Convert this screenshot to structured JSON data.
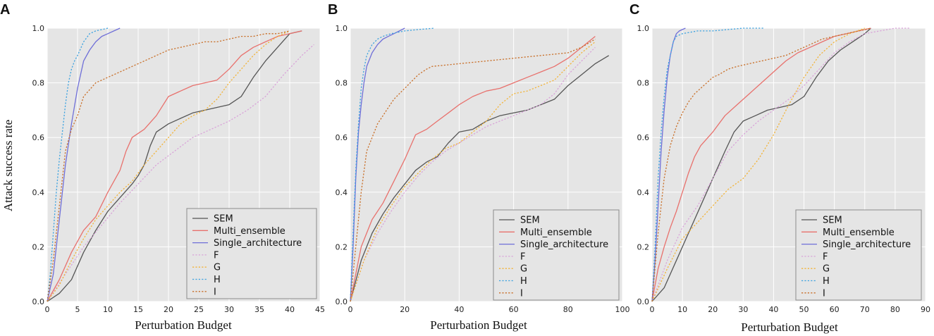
{
  "figure": {
    "ylabel": "Attack success rate"
  },
  "series_styles": [
    {
      "name": "SEM",
      "color": "#555555",
      "dash": "solid"
    },
    {
      "name": "Multi_ensemble",
      "color": "#e8716d",
      "dash": "solid"
    },
    {
      "name": "Single_architecture",
      "color": "#6f6fd8",
      "dash": "solid"
    },
    {
      "name": "F",
      "color": "#d9a3d9",
      "dash": "dotted"
    },
    {
      "name": "G",
      "color": "#f2b43a",
      "dash": "dotted"
    },
    {
      "name": "H",
      "color": "#3ea3e0",
      "dash": "dotted"
    },
    {
      "name": "I",
      "color": "#c9702a",
      "dash": "dotted"
    }
  ],
  "chart_data": [
    {
      "type": "line",
      "panel": "A",
      "xlabel": "Perturbation Budget",
      "ylabel": "Attack success rate",
      "xlim": [
        0,
        45
      ],
      "ylim": [
        0,
        1.0
      ],
      "xticks": [
        0,
        5,
        10,
        15,
        20,
        25,
        30,
        35,
        40,
        45
      ],
      "yticks": [
        0.0,
        0.2,
        0.4,
        0.6,
        0.8,
        1.0
      ],
      "legend_position": "bottom-right",
      "series": [
        {
          "name": "SEM",
          "x": [
            0,
            2,
            4,
            6,
            8,
            10,
            12,
            14,
            15,
            16,
            17,
            18,
            20,
            22,
            24,
            26,
            28,
            30,
            32,
            34,
            36,
            38,
            40,
            42
          ],
          "y": [
            0,
            0.03,
            0.08,
            0.18,
            0.26,
            0.33,
            0.38,
            0.43,
            0.46,
            0.5,
            0.57,
            0.62,
            0.65,
            0.67,
            0.69,
            0.7,
            0.71,
            0.72,
            0.75,
            0.82,
            0.88,
            0.93,
            0.98,
            0.99
          ]
        },
        {
          "name": "Multi_ensemble",
          "x": [
            0,
            2,
            4,
            6,
            8,
            10,
            12,
            13,
            14,
            16,
            18,
            20,
            22,
            24,
            26,
            28,
            30,
            32,
            34,
            36,
            38,
            40,
            42
          ],
          "y": [
            0,
            0.08,
            0.18,
            0.26,
            0.31,
            0.4,
            0.48,
            0.55,
            0.6,
            0.63,
            0.68,
            0.75,
            0.77,
            0.79,
            0.8,
            0.81,
            0.85,
            0.9,
            0.93,
            0.95,
            0.97,
            0.98,
            0.99
          ]
        },
        {
          "name": "Single_architecture",
          "x": [
            0,
            1,
            2,
            3,
            4,
            5,
            6,
            7,
            8,
            9,
            10,
            11,
            12
          ],
          "y": [
            0,
            0.1,
            0.3,
            0.5,
            0.65,
            0.78,
            0.88,
            0.92,
            0.95,
            0.97,
            0.98,
            0.99,
            1.0
          ]
        },
        {
          "name": "F",
          "x": [
            0,
            3,
            6,
            9,
            12,
            15,
            18,
            21,
            24,
            27,
            30,
            33,
            36,
            39,
            42,
            44
          ],
          "y": [
            0,
            0.1,
            0.2,
            0.28,
            0.36,
            0.43,
            0.5,
            0.55,
            0.6,
            0.63,
            0.66,
            0.7,
            0.75,
            0.83,
            0.9,
            0.94
          ]
        },
        {
          "name": "G",
          "x": [
            0,
            2,
            4,
            6,
            8,
            10,
            12,
            14,
            16,
            18,
            20,
            22,
            24,
            26,
            28,
            30,
            32,
            34,
            36,
            38,
            40
          ],
          "y": [
            0,
            0.06,
            0.15,
            0.23,
            0.3,
            0.35,
            0.4,
            0.44,
            0.5,
            0.55,
            0.6,
            0.65,
            0.68,
            0.7,
            0.74,
            0.8,
            0.85,
            0.9,
            0.94,
            0.97,
            0.99
          ]
        },
        {
          "name": "H",
          "x": [
            0,
            0.5,
            1,
            1.5,
            2,
            2.5,
            3,
            3.5,
            4,
            4.5,
            5,
            6,
            7,
            8,
            10
          ],
          "y": [
            0,
            0.1,
            0.25,
            0.4,
            0.52,
            0.62,
            0.72,
            0.8,
            0.85,
            0.88,
            0.9,
            0.95,
            0.98,
            0.99,
            1.0
          ]
        },
        {
          "name": "I",
          "x": [
            0,
            1,
            2,
            3,
            4,
            5,
            6,
            8,
            10,
            12,
            14,
            16,
            18,
            20,
            22,
            24,
            26,
            28,
            30,
            32,
            34,
            36,
            38,
            40
          ],
          "y": [
            0,
            0.15,
            0.35,
            0.55,
            0.63,
            0.68,
            0.75,
            0.8,
            0.82,
            0.84,
            0.86,
            0.88,
            0.9,
            0.92,
            0.93,
            0.94,
            0.95,
            0.95,
            0.96,
            0.97,
            0.97,
            0.98,
            0.98,
            0.99
          ]
        }
      ]
    },
    {
      "type": "line",
      "panel": "B",
      "xlabel": "Perturbation Budget",
      "ylabel": "",
      "xlim": [
        0,
        100
      ],
      "ylim": [
        0,
        1.0
      ],
      "xticks": [
        0,
        20,
        40,
        60,
        80,
        100
      ],
      "yticks": [
        0.0,
        0.2,
        0.4,
        0.6,
        0.8,
        1.0
      ],
      "legend_position": "bottom-right",
      "series": [
        {
          "name": "SEM",
          "x": [
            0,
            4,
            8,
            12,
            16,
            20,
            24,
            28,
            32,
            36,
            40,
            45,
            50,
            55,
            60,
            65,
            70,
            75,
            80,
            85,
            90,
            95
          ],
          "y": [
            0,
            0.15,
            0.25,
            0.32,
            0.38,
            0.43,
            0.48,
            0.51,
            0.53,
            0.58,
            0.62,
            0.63,
            0.66,
            0.68,
            0.69,
            0.7,
            0.72,
            0.74,
            0.79,
            0.83,
            0.87,
            0.9
          ]
        },
        {
          "name": "Multi_ensemble",
          "x": [
            0,
            4,
            8,
            12,
            16,
            20,
            24,
            28,
            32,
            36,
            40,
            45,
            50,
            55,
            60,
            65,
            70,
            75,
            80,
            85,
            90
          ],
          "y": [
            0,
            0.2,
            0.3,
            0.36,
            0.44,
            0.52,
            0.61,
            0.63,
            0.66,
            0.69,
            0.72,
            0.75,
            0.77,
            0.78,
            0.8,
            0.82,
            0.84,
            0.86,
            0.89,
            0.93,
            0.97
          ]
        },
        {
          "name": "Single_architecture",
          "x": [
            0,
            1,
            2,
            3,
            4,
            5,
            6,
            8,
            10,
            12,
            14,
            16,
            18,
            20
          ],
          "y": [
            0,
            0.2,
            0.45,
            0.62,
            0.72,
            0.8,
            0.86,
            0.91,
            0.94,
            0.96,
            0.97,
            0.98,
            0.99,
            1.0
          ]
        },
        {
          "name": "F",
          "x": [
            0,
            5,
            10,
            15,
            20,
            25,
            30,
            35,
            40,
            45,
            50,
            55,
            60,
            65,
            70,
            75,
            80,
            85,
            90
          ],
          "y": [
            0,
            0.15,
            0.25,
            0.33,
            0.4,
            0.46,
            0.51,
            0.55,
            0.58,
            0.61,
            0.64,
            0.66,
            0.68,
            0.7,
            0.72,
            0.76,
            0.83,
            0.88,
            0.93
          ]
        },
        {
          "name": "G",
          "x": [
            0,
            5,
            10,
            15,
            20,
            25,
            30,
            35,
            40,
            45,
            50,
            55,
            60,
            65,
            70,
            75,
            80,
            85,
            90
          ],
          "y": [
            0,
            0.15,
            0.27,
            0.35,
            0.42,
            0.47,
            0.52,
            0.56,
            0.58,
            0.62,
            0.66,
            0.72,
            0.76,
            0.77,
            0.79,
            0.81,
            0.86,
            0.91,
            0.95
          ]
        },
        {
          "name": "H",
          "x": [
            0,
            1,
            2,
            3,
            4,
            5,
            6,
            8,
            10,
            12,
            15,
            20,
            25,
            31
          ],
          "y": [
            0,
            0.25,
            0.48,
            0.65,
            0.78,
            0.85,
            0.9,
            0.94,
            0.96,
            0.97,
            0.98,
            0.99,
            0.995,
            1.0
          ]
        },
        {
          "name": "I",
          "x": [
            0,
            2,
            4,
            6,
            8,
            10,
            12,
            14,
            16,
            18,
            20,
            22,
            25,
            28,
            30,
            35,
            40,
            45,
            50,
            55,
            60,
            65,
            70,
            75,
            80,
            85,
            90
          ],
          "y": [
            0,
            0.2,
            0.4,
            0.55,
            0.6,
            0.65,
            0.68,
            0.71,
            0.74,
            0.76,
            0.78,
            0.8,
            0.83,
            0.85,
            0.86,
            0.865,
            0.87,
            0.875,
            0.88,
            0.885,
            0.89,
            0.895,
            0.9,
            0.905,
            0.91,
            0.93,
            0.96
          ]
        }
      ]
    },
    {
      "type": "line",
      "panel": "C",
      "xlabel": "Perturbation Budget",
      "ylabel": "",
      "xlim": [
        0,
        90
      ],
      "ylim": [
        0,
        1.0
      ],
      "xticks": [
        0,
        10,
        20,
        30,
        40,
        50,
        60,
        70,
        80,
        90
      ],
      "yticks": [
        0.0,
        0.2,
        0.4,
        0.6,
        0.8,
        1.0
      ],
      "legend_position": "bottom-right",
      "series": [
        {
          "name": "SEM",
          "x": [
            0,
            4,
            8,
            12,
            16,
            20,
            24,
            27,
            30,
            34,
            38,
            42,
            46,
            50,
            54,
            58,
            62,
            66,
            70,
            72
          ],
          "y": [
            0,
            0.05,
            0.15,
            0.25,
            0.35,
            0.45,
            0.55,
            0.62,
            0.66,
            0.68,
            0.7,
            0.71,
            0.72,
            0.75,
            0.82,
            0.88,
            0.92,
            0.95,
            0.98,
            1.0
          ]
        },
        {
          "name": "Multi_ensemble",
          "x": [
            0,
            2,
            4,
            6,
            8,
            10,
            12,
            14,
            16,
            20,
            24,
            28,
            32,
            36,
            40,
            44,
            48,
            52,
            56,
            60,
            64,
            68,
            72
          ],
          "y": [
            0,
            0.12,
            0.2,
            0.27,
            0.33,
            0.4,
            0.47,
            0.53,
            0.57,
            0.62,
            0.68,
            0.72,
            0.76,
            0.8,
            0.84,
            0.88,
            0.91,
            0.93,
            0.95,
            0.97,
            0.98,
            0.99,
            1.0
          ]
        },
        {
          "name": "Single_architecture",
          "x": [
            0,
            1,
            2,
            3,
            4,
            5,
            6,
            7,
            8,
            9,
            10,
            11
          ],
          "y": [
            0,
            0.15,
            0.35,
            0.55,
            0.7,
            0.82,
            0.9,
            0.95,
            0.98,
            0.99,
            0.995,
            1.0
          ]
        },
        {
          "name": "F",
          "x": [
            0,
            5,
            10,
            15,
            20,
            25,
            30,
            35,
            40,
            45,
            50,
            55,
            60,
            65,
            70,
            75,
            80,
            85
          ],
          "y": [
            0,
            0.15,
            0.27,
            0.35,
            0.45,
            0.55,
            0.61,
            0.66,
            0.7,
            0.74,
            0.79,
            0.85,
            0.91,
            0.95,
            0.98,
            0.99,
            1.0,
            1.0
          ]
        },
        {
          "name": "G",
          "x": [
            0,
            5,
            10,
            15,
            20,
            25,
            30,
            35,
            40,
            45,
            50,
            55,
            60,
            65,
            70
          ],
          "y": [
            0,
            0.12,
            0.23,
            0.29,
            0.35,
            0.41,
            0.45,
            0.52,
            0.61,
            0.72,
            0.82,
            0.9,
            0.95,
            0.98,
            1.0
          ]
        },
        {
          "name": "H",
          "x": [
            0,
            1,
            2,
            3,
            4,
            5,
            6,
            7,
            8,
            10,
            15,
            20,
            25,
            30,
            37
          ],
          "y": [
            0,
            0.2,
            0.45,
            0.62,
            0.75,
            0.85,
            0.9,
            0.95,
            0.97,
            0.98,
            0.99,
            0.99,
            0.995,
            1.0,
            1.0
          ]
        },
        {
          "name": "I",
          "x": [
            0,
            2,
            4,
            6,
            8,
            10,
            12,
            14,
            16,
            18,
            20,
            22,
            25,
            28,
            32,
            36,
            40,
            44,
            48,
            52,
            56,
            60,
            64,
            68,
            72
          ],
          "y": [
            0,
            0.25,
            0.45,
            0.57,
            0.64,
            0.69,
            0.73,
            0.76,
            0.78,
            0.8,
            0.82,
            0.83,
            0.85,
            0.86,
            0.87,
            0.88,
            0.89,
            0.9,
            0.92,
            0.94,
            0.96,
            0.97,
            0.98,
            0.99,
            1.0
          ]
        }
      ]
    }
  ]
}
